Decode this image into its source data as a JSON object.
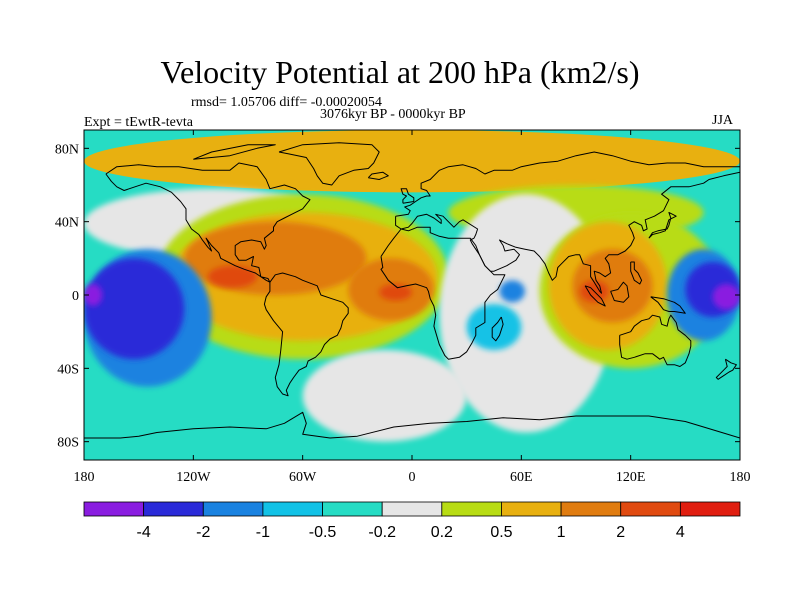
{
  "header": {
    "title": "Velocity Potential at 200 hPa (km2/s)",
    "stats": "rmsd= 1.05706 diff= -0.00020054",
    "period": "3076kyr BP - 0000kyr BP",
    "experiment": "Expt = tEwtR-tevta",
    "season": "JJA"
  },
  "chart_data": {
    "type": "heatmap",
    "title": "Velocity Potential at 200 hPa (km2/s)",
    "subtitle": "3076kyr BP - 0000kyr BP",
    "annotations": [
      "rmsd= 1.05706 diff= -0.00020054",
      "Expt = tEwtR-tevta",
      "JJA"
    ],
    "units": "km2/s",
    "xlim": [
      -180,
      180
    ],
    "ylim": [
      -90,
      90
    ],
    "x_ticks": [
      {
        "value": -180,
        "label": "180"
      },
      {
        "value": -120,
        "label": "120W"
      },
      {
        "value": -60,
        "label": "60W"
      },
      {
        "value": 0,
        "label": "0"
      },
      {
        "value": 60,
        "label": "60E"
      },
      {
        "value": 120,
        "label": "120E"
      },
      {
        "value": 180,
        "label": "180"
      }
    ],
    "y_ticks": [
      {
        "value": 80,
        "label": "80N"
      },
      {
        "value": 40,
        "label": "40N"
      },
      {
        "value": 0,
        "label": "0"
      },
      {
        "value": -40,
        "label": "40S"
      },
      {
        "value": -80,
        "label": "80S"
      }
    ],
    "colorbar": {
      "levels": [
        "-4",
        "-2",
        "-1",
        "-0.5",
        "-0.2",
        "0.2",
        "0.5",
        "1",
        "2",
        "4"
      ],
      "colors": [
        "#8a1de0",
        "#2a2ad8",
        "#1a82e0",
        "#12c2e6",
        "#26dcc4",
        "#e6e6e6",
        "#b8dc14",
        "#e8b010",
        "#e07c10",
        "#e04a10",
        "#e01e10"
      ]
    },
    "regions": [
      {
        "name": "background_cyan",
        "level": 4,
        "lon": [
          -180,
          180
        ],
        "lat": [
          -90,
          90
        ]
      },
      {
        "name": "arctic_orange",
        "level": 7,
        "lon": [
          -180,
          180
        ],
        "lat": [
          56,
          90
        ]
      },
      {
        "name": "asia_green",
        "level": 6,
        "lon": [
          20,
          160
        ],
        "lat": [
          30,
          60
        ]
      },
      {
        "name": "pacific_white_band",
        "level": 5,
        "lon": [
          -180,
          -40
        ],
        "lat": [
          20,
          58
        ]
      },
      {
        "name": "americas_atlantic_green",
        "level": 6,
        "lon": [
          -140,
          20
        ],
        "lat": [
          -35,
          55
        ]
      },
      {
        "name": "americas_atlantic_orange",
        "level": 7,
        "lon": [
          -132,
          14
        ],
        "lat": [
          -25,
          45
        ]
      },
      {
        "name": "mexico_dark_orange",
        "level": 8,
        "lon": [
          -125,
          -25
        ],
        "lat": [
          0,
          40
        ]
      },
      {
        "name": "central_america_red",
        "level": 9,
        "lon": [
          -112,
          -85
        ],
        "lat": [
          4,
          16
        ]
      },
      {
        "name": "atlantic_dark_orange",
        "level": 8,
        "lon": [
          -35,
          12
        ],
        "lat": [
          -14,
          20
        ]
      },
      {
        "name": "atlantic_red",
        "level": 9,
        "lon": [
          -18,
          0
        ],
        "lat": [
          -3,
          6
        ]
      },
      {
        "name": "east_pacific_blue",
        "level": 2,
        "lon": [
          -180,
          -110
        ],
        "lat": [
          -50,
          25
        ]
      },
      {
        "name": "east_pacific_dark_blue",
        "level": 1,
        "lon": [
          -180,
          -125
        ],
        "lat": [
          -35,
          20
        ]
      },
      {
        "name": "dateline_purple_west",
        "level": 0,
        "lon": [
          -180,
          -170
        ],
        "lat": [
          -6,
          6
        ]
      },
      {
        "name": "indian_ocean_white",
        "level": 5,
        "lon": [
          15,
          110
        ],
        "lat": [
          -75,
          55
        ]
      },
      {
        "name": "south_atlantic_white",
        "level": 5,
        "lon": [
          -60,
          30
        ],
        "lat": [
          -80,
          -30
        ]
      },
      {
        "name": "indian_ocean_cyan",
        "level": 3,
        "lon": [
          30,
          60
        ],
        "lat": [
          -30,
          -5
        ]
      },
      {
        "name": "east_africa_blue",
        "level": 2,
        "lon": [
          48,
          62
        ],
        "lat": [
          -4,
          8
        ]
      },
      {
        "name": "maritime_continent_green",
        "level": 6,
        "lon": [
          70,
          170
        ],
        "lat": [
          -40,
          45
        ]
      },
      {
        "name": "maritime_continent_orange",
        "level": 7,
        "lon": [
          75,
          140
        ],
        "lat": [
          -30,
          40
        ]
      },
      {
        "name": "maritime_continent_dark_orange",
        "level": 8,
        "lon": [
          88,
          132
        ],
        "lat": [
          -15,
          25
        ]
      },
      {
        "name": "south_china_sea_red",
        "level": 9,
        "lon": [
          92,
          108
        ],
        "lat": [
          -4,
          8
        ]
      },
      {
        "name": "west_pacific_blue",
        "level": 2,
        "lon": [
          140,
          180
        ],
        "lat": [
          -25,
          25
        ]
      },
      {
        "name": "west_pacific_dark_blue",
        "level": 1,
        "lon": [
          150,
          180
        ],
        "lat": [
          -12,
          18
        ]
      },
      {
        "name": "dateline_purple_east",
        "level": 0,
        "lon": [
          165,
          180
        ],
        "lat": [
          -8,
          6
        ]
      }
    ]
  }
}
